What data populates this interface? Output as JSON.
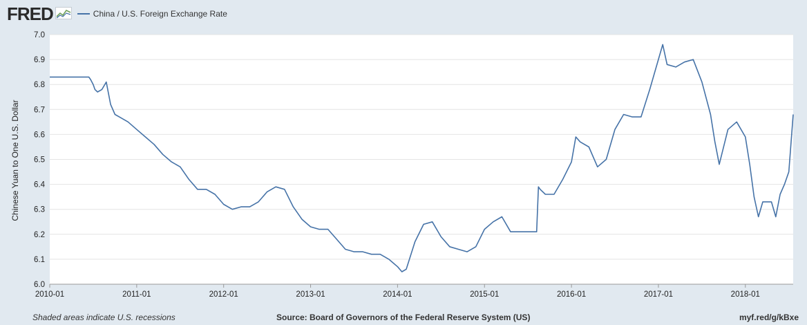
{
  "header": {
    "logo": "FRED",
    "legend_label": "China / U.S. Foreign Exchange Rate"
  },
  "colors": {
    "series": "#4572a7",
    "plot_background": "#ffffff",
    "page_background": "#e1e9f0",
    "grid": "#e4e4e4"
  },
  "footer": {
    "left": "Shaded areas indicate U.S. recessions",
    "center": "Source: Board of Governors of the Federal Reserve System (US)",
    "right": "myf.red/g/kBxe"
  },
  "chart_data": {
    "type": "line",
    "title": "",
    "xlabel": "",
    "ylabel": "Chinese Yuan to One U.S. Dollar",
    "xlim": [
      2010.0,
      2018.55
    ],
    "ylim": [
      6.0,
      7.0
    ],
    "x_tick_labels": [
      "2010-01",
      "2011-01",
      "2012-01",
      "2013-01",
      "2014-01",
      "2015-01",
      "2016-01",
      "2017-01",
      "2018-01"
    ],
    "y_tick_labels": [
      "6.0",
      "6.1",
      "6.2",
      "6.3",
      "6.4",
      "6.5",
      "6.6",
      "6.7",
      "6.8",
      "6.9",
      "7.0"
    ],
    "grid": "horizontal",
    "legend": "top-left",
    "series": [
      {
        "name": "China / U.S. Foreign Exchange Rate",
        "x": [
          2010.0,
          2010.3,
          2010.45,
          2010.47,
          2010.5,
          2010.52,
          2010.55,
          2010.6,
          2010.65,
          2010.7,
          2010.75,
          2010.8,
          2010.85,
          2010.9,
          2011.0,
          2011.1,
          2011.2,
          2011.3,
          2011.4,
          2011.5,
          2011.6,
          2011.7,
          2011.8,
          2011.9,
          2012.0,
          2012.1,
          2012.2,
          2012.3,
          2012.4,
          2012.5,
          2012.6,
          2012.7,
          2012.8,
          2012.9,
          2013.0,
          2013.1,
          2013.2,
          2013.3,
          2013.4,
          2013.5,
          2013.6,
          2013.7,
          2013.8,
          2013.9,
          2014.0,
          2014.05,
          2014.1,
          2014.2,
          2014.3,
          2014.4,
          2014.5,
          2014.6,
          2014.7,
          2014.8,
          2014.9,
          2015.0,
          2015.1,
          2015.2,
          2015.3,
          2015.4,
          2015.5,
          2015.6,
          2015.62,
          2015.64,
          2015.7,
          2015.8,
          2015.9,
          2016.0,
          2016.05,
          2016.1,
          2016.2,
          2016.3,
          2016.4,
          2016.5,
          2016.6,
          2016.7,
          2016.8,
          2016.9,
          2017.0,
          2017.05,
          2017.1,
          2017.2,
          2017.3,
          2017.4,
          2017.5,
          2017.6,
          2017.65,
          2017.7,
          2017.8,
          2017.9,
          2018.0,
          2018.05,
          2018.1,
          2018.15,
          2018.2,
          2018.25,
          2018.3,
          2018.35,
          2018.4,
          2018.45,
          2018.5,
          2018.55
        ],
        "y": [
          6.83,
          6.83,
          6.83,
          6.82,
          6.8,
          6.78,
          6.77,
          6.78,
          6.81,
          6.72,
          6.68,
          6.67,
          6.66,
          6.65,
          6.62,
          6.59,
          6.56,
          6.52,
          6.49,
          6.47,
          6.42,
          6.38,
          6.38,
          6.36,
          6.32,
          6.3,
          6.31,
          6.31,
          6.33,
          6.37,
          6.39,
          6.38,
          6.31,
          6.26,
          6.23,
          6.22,
          6.22,
          6.18,
          6.14,
          6.13,
          6.13,
          6.12,
          6.12,
          6.1,
          6.07,
          6.05,
          6.06,
          6.17,
          6.24,
          6.25,
          6.19,
          6.15,
          6.14,
          6.13,
          6.15,
          6.22,
          6.25,
          6.27,
          6.21,
          6.21,
          6.21,
          6.21,
          6.39,
          6.38,
          6.36,
          6.36,
          6.42,
          6.49,
          6.59,
          6.57,
          6.55,
          6.47,
          6.5,
          6.62,
          6.68,
          6.67,
          6.67,
          6.78,
          6.9,
          6.96,
          6.88,
          6.87,
          6.89,
          6.9,
          6.81,
          6.68,
          6.57,
          6.48,
          6.62,
          6.65,
          6.59,
          6.48,
          6.35,
          6.27,
          6.33,
          6.33,
          6.33,
          6.27,
          6.36,
          6.4,
          6.45,
          6.68
        ]
      }
    ]
  }
}
